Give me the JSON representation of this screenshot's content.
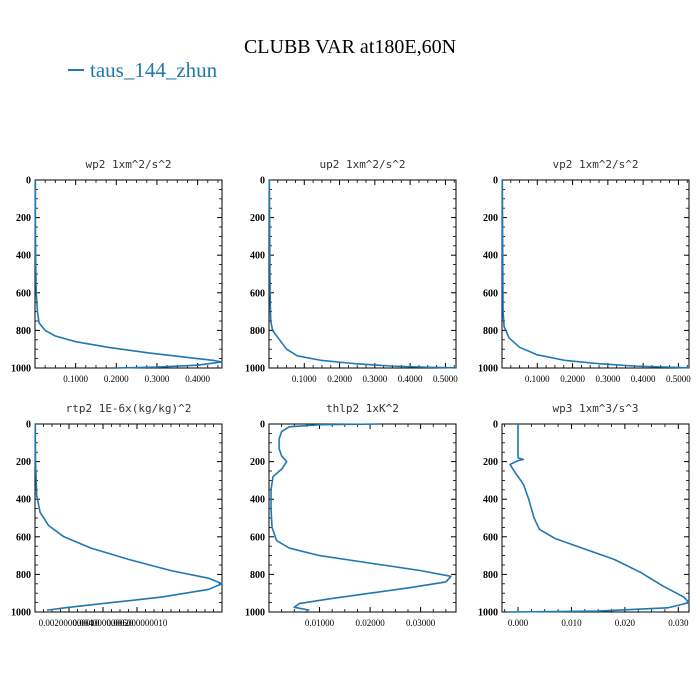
{
  "figure": {
    "title": "CLUBB VAR at180E,60N",
    "legend": {
      "label": "taus_144_zhun",
      "color": "#1f77b4"
    }
  },
  "chart_data": [
    {
      "type": "line",
      "title": "wp2  1xm^2/s^2",
      "xlim": [
        0,
        0.46
      ],
      "ylim": [
        0,
        1000
      ],
      "y_inverted": true,
      "xticks": [
        0.1,
        0.2,
        0.3,
        0.4
      ],
      "xticklabels": [
        "0.1000",
        "0.2000",
        "0.3000",
        "0.4000"
      ],
      "yticks": [
        0,
        200,
        400,
        600,
        800,
        1000
      ],
      "series": [
        {
          "color": "#1f77b4",
          "points": [
            [
              0.001,
              0
            ],
            [
              0.001,
              220
            ],
            [
              0.0015,
              400
            ],
            [
              0.003,
              600
            ],
            [
              0.006,
              700
            ],
            [
              0.01,
              760
            ],
            [
              0.025,
              800
            ],
            [
              0.05,
              830
            ],
            [
              0.1,
              860
            ],
            [
              0.18,
              890
            ],
            [
              0.28,
              920
            ],
            [
              0.38,
              945
            ],
            [
              0.44,
              960
            ],
            [
              0.46,
              968
            ],
            [
              0.4,
              985
            ],
            [
              0.3,
              995
            ],
            [
              0.2,
              1000
            ]
          ]
        }
      ]
    },
    {
      "type": "line",
      "title": "up2  1xm^2/s^2",
      "xlim": [
        0,
        0.53
      ],
      "ylim": [
        0,
        1000
      ],
      "y_inverted": true,
      "xticks": [
        0.1,
        0.2,
        0.3,
        0.4,
        0.5
      ],
      "xticklabels": [
        "0.1000",
        "0.2000",
        "0.3000",
        "0.4000",
        "0.5000"
      ],
      "yticks": [
        0,
        200,
        400,
        600,
        800,
        1000
      ],
      "series": [
        {
          "color": "#1f77b4",
          "points": [
            [
              0.001,
              0
            ],
            [
              0.002,
              300
            ],
            [
              0.003,
              600
            ],
            [
              0.005,
              750
            ],
            [
              0.01,
              800
            ],
            [
              0.03,
              850
            ],
            [
              0.05,
              900
            ],
            [
              0.08,
              935
            ],
            [
              0.15,
              960
            ],
            [
              0.25,
              978
            ],
            [
              0.35,
              990
            ],
            [
              0.45,
              996
            ],
            [
              0.53,
              999
            ]
          ]
        }
      ]
    },
    {
      "type": "line",
      "title": "vp2  1xm^2/s^2",
      "xlim": [
        0,
        0.53
      ],
      "ylim": [
        0,
        1000
      ],
      "y_inverted": true,
      "xticks": [
        0.1,
        0.2,
        0.3,
        0.4,
        0.5
      ],
      "xticklabels": [
        "0.1000",
        "0.2000",
        "0.3000",
        "0.4000",
        "0.5000"
      ],
      "yticks": [
        0,
        200,
        400,
        600,
        800,
        1000
      ],
      "series": [
        {
          "color": "#1f77b4",
          "points": [
            [
              0.001,
              0
            ],
            [
              0.002,
              400
            ],
            [
              0.003,
              700
            ],
            [
              0.006,
              780
            ],
            [
              0.02,
              840
            ],
            [
              0.05,
              890
            ],
            [
              0.1,
              930
            ],
            [
              0.18,
              960
            ],
            [
              0.28,
              978
            ],
            [
              0.38,
              990
            ],
            [
              0.48,
              996
            ],
            [
              0.53,
              999
            ]
          ]
        }
      ]
    },
    {
      "type": "line",
      "title": "rtp2  1E-6x(kg/kg)^2",
      "xlim": [
        0,
        1.1e-05
      ],
      "ylim": [
        0,
        1000
      ],
      "y_inverted": true,
      "xticks": [
        2e-06,
        4e-06,
        6e-06
      ],
      "xticklabels": [
        "0.002000000010",
        "0.004000000020",
        "0.006000000010"
      ],
      "yticks": [
        0,
        200,
        400,
        600,
        800,
        1000
      ],
      "series": [
        {
          "color": "#1f77b4",
          "points": [
            [
              2e-08,
              0
            ],
            [
              3e-08,
              200
            ],
            [
              1e-07,
              380
            ],
            [
              3e-07,
              470
            ],
            [
              8e-07,
              540
            ],
            [
              1.7e-06,
              600
            ],
            [
              3.3e-06,
              660
            ],
            [
              5.5e-06,
              720
            ],
            [
              8e-06,
              780
            ],
            [
              1.02e-05,
              820
            ],
            [
              1.1e-05,
              850
            ],
            [
              1.02e-05,
              880
            ],
            [
              7.5e-06,
              920
            ],
            [
              4.5e-06,
              950
            ],
            [
              2e-06,
              975
            ],
            [
              7e-07,
              990
            ]
          ]
        }
      ]
    },
    {
      "type": "line",
      "title": "thlp2  1xK^2",
      "xlim": [
        0,
        0.037
      ],
      "ylim": [
        0,
        1000
      ],
      "y_inverted": true,
      "xticks": [
        0.01,
        0.02,
        0.03
      ],
      "xticklabels": [
        "0.01000",
        "0.02000",
        "0.03000"
      ],
      "yticks": [
        0,
        200,
        400,
        600,
        800,
        1000
      ],
      "series": [
        {
          "color": "#1f77b4",
          "points": [
            [
              0.022,
              0
            ],
            [
              0.01,
              4
            ],
            [
              0.004,
              15
            ],
            [
              0.0025,
              40
            ],
            [
              0.002,
              80
            ],
            [
              0.002,
              130
            ],
            [
              0.0025,
              170
            ],
            [
              0.0035,
              200
            ],
            [
              0.0025,
              240
            ],
            [
              0.0008,
              280
            ],
            [
              0.0004,
              350
            ],
            [
              0.0004,
              450
            ],
            [
              0.0006,
              550
            ],
            [
              0.0015,
              620
            ],
            [
              0.004,
              660
            ],
            [
              0.01,
              700
            ],
            [
              0.02,
              740
            ],
            [
              0.03,
              780
            ],
            [
              0.036,
              810
            ],
            [
              0.035,
              840
            ],
            [
              0.028,
              870
            ],
            [
              0.02,
              900
            ],
            [
              0.012,
              930
            ],
            [
              0.006,
              955
            ],
            [
              0.005,
              975
            ],
            [
              0.008,
              990
            ]
          ]
        }
      ]
    },
    {
      "type": "line",
      "title": "wp3  1xm^3/s^3",
      "xlim": [
        -0.003,
        0.032
      ],
      "ylim": [
        0,
        1000
      ],
      "y_inverted": true,
      "xticks": [
        0.0,
        0.01,
        0.02,
        0.03
      ],
      "xticklabels": [
        "0.000",
        "0.010",
        "0.020",
        "0.030"
      ],
      "yticks": [
        0,
        200,
        400,
        600,
        800,
        1000
      ],
      "series": [
        {
          "color": "#1f77b4",
          "points": [
            [
              0.0,
              0
            ],
            [
              0.0,
              180
            ],
            [
              0.001,
              188
            ],
            [
              0.0,
              195
            ],
            [
              -0.0015,
              215
            ],
            [
              -0.0005,
              260
            ],
            [
              0.001,
              320
            ],
            [
              0.002,
              400
            ],
            [
              0.003,
              500
            ],
            [
              0.004,
              560
            ],
            [
              0.007,
              610
            ],
            [
              0.012,
              660
            ],
            [
              0.018,
              720
            ],
            [
              0.023,
              790
            ],
            [
              0.027,
              860
            ],
            [
              0.031,
              920
            ],
            [
              0.032,
              950
            ],
            [
              0.028,
              978
            ],
            [
              0.015,
              995
            ],
            [
              -0.002,
              1000
            ]
          ]
        }
      ]
    }
  ]
}
